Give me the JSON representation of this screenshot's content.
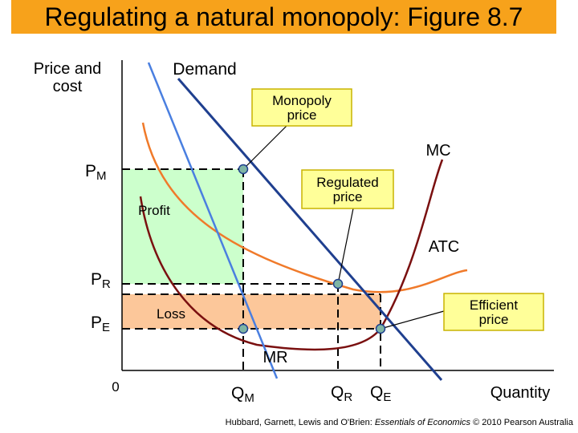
{
  "title": "Regulating a natural monopoly: Figure 8.7",
  "credit": {
    "authors": "Hubbard, Garnett, Lewis and O'Brien: ",
    "book": "Essentials of Economics",
    "rest": " © 2010 Pearson Australia"
  },
  "colors": {
    "title_bg": "#f7a21b",
    "demand": "#1f3f8f",
    "mr": "#4a7fe0",
    "atc": "#f07a2a",
    "mc": "#7a1010",
    "profit_fill": "#ccffcc",
    "loss_fill": "#fcc79a",
    "point_fill": "#7fb5a5",
    "callout_fill": "#ffff99"
  },
  "chart_data": {
    "type": "line",
    "title": "Regulating a natural monopoly: Figure 8.7",
    "xlabel": "Quantity",
    "ylabel": "Price and cost",
    "grid": false,
    "legend": "none",
    "origin_label": "0",
    "y_ticks": [
      {
        "label": "P",
        "sub": "M",
        "value": "PM"
      },
      {
        "label": "P",
        "sub": "R",
        "value": "PR"
      },
      {
        "label": "P",
        "sub": "E",
        "value": "PE"
      }
    ],
    "x_ticks": [
      {
        "label": "Q",
        "sub": "M",
        "value": "QM"
      },
      {
        "label": "Q",
        "sub": "R",
        "value": "QR"
      },
      {
        "label": "Q",
        "sub": "E",
        "value": "QE"
      }
    ],
    "series": [
      {
        "name": "Demand",
        "shape": "downward-sloping line"
      },
      {
        "name": "MR",
        "shape": "steeper downward-sloping line"
      },
      {
        "name": "ATC",
        "shape": "U-shaped, minimum right of QE"
      },
      {
        "name": "MC",
        "shape": "U-shaped, crosses Demand at QE"
      }
    ],
    "areas": [
      {
        "name": "Profit",
        "x_range": [
          "0",
          "QM"
        ],
        "y_range": [
          "PR",
          "PM"
        ]
      },
      {
        "name": "Loss",
        "x_range": [
          "0",
          "QE"
        ],
        "y_range": [
          "PE",
          "PR"
        ]
      }
    ],
    "annotations": [
      "Monopoly price",
      "Regulated price",
      "Efficient price"
    ]
  }
}
